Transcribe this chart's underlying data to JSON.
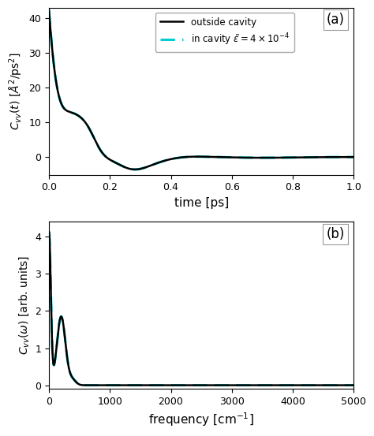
{
  "panel_a": {
    "title_label": "(a)",
    "xlabel": "time [ps]",
    "ylabel": "$C_{vv}(t)$ [$\\AA^2$/ps$^2$]",
    "xlim": [
      0,
      1.0
    ],
    "ylim": [
      -5,
      43
    ],
    "yticks": [
      0,
      10,
      20,
      30,
      40
    ],
    "xticks": [
      0.0,
      0.2,
      0.4,
      0.6,
      0.8,
      1.0
    ],
    "legend_outside": "outside cavity",
    "legend_inside": "in cavity $\\tilde{\\varepsilon} = 4 \\times 10^{-4}$"
  },
  "panel_b": {
    "title_label": "(b)",
    "xlabel": "frequency [cm$^{-1}$]",
    "ylabel": "$C_{vv}(\\omega)$ [arb. units]",
    "xlim": [
      0,
      5000
    ],
    "ylim": [
      -0.1,
      4.4
    ],
    "yticks": [
      0,
      1,
      2,
      3,
      4
    ],
    "xticks": [
      0,
      1000,
      2000,
      3000,
      4000,
      5000
    ]
  },
  "color_outside": "#000000",
  "color_inside": "#00CED1",
  "lw_outside": 1.8,
  "lw_inside": 2.2,
  "bg_color": "#ffffff"
}
